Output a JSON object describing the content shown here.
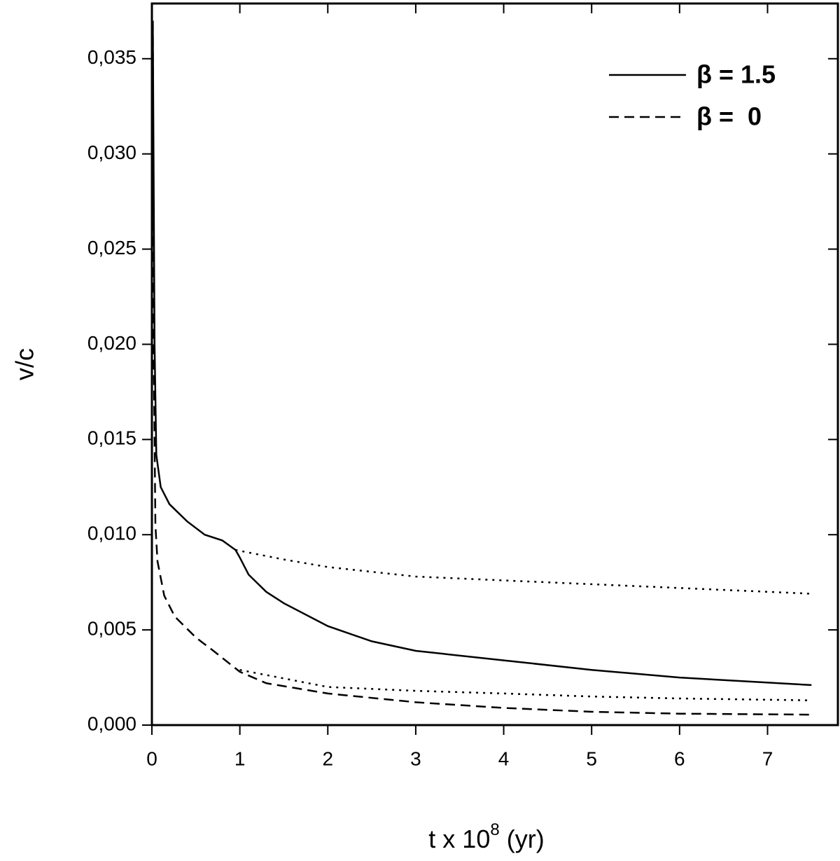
{
  "chart_data": {
    "type": "line",
    "xlabel": {
      "base": "t x 10",
      "exponent": "8",
      "unit": "(yr)"
    },
    "ylabel": "v/c",
    "xlim": [
      0,
      7.8
    ],
    "ylim": [
      0,
      0.0379
    ],
    "xticks": [
      0,
      1,
      2,
      3,
      4,
      5,
      6,
      7
    ],
    "yticks": [
      {
        "value": 0,
        "label": "0,000"
      },
      {
        "value": 0.005,
        "label": "0,005"
      },
      {
        "value": 0.01,
        "label": "0,010"
      },
      {
        "value": 0.015,
        "label": "0,015"
      },
      {
        "value": 0.02,
        "label": "0,020"
      },
      {
        "value": 0.025,
        "label": "0,025"
      },
      {
        "value": 0.03,
        "label": "0,030"
      },
      {
        "value": 0.035,
        "label": "0,035"
      }
    ],
    "legend": "upper right",
    "series": [
      {
        "name": "β = 1.5",
        "color": "#000000",
        "style": "solid",
        "x": [
          0.01,
          0.03,
          0.05,
          0.1,
          0.2,
          0.4,
          0.6,
          0.8,
          0.95,
          1.0,
          1.1,
          1.3,
          1.5,
          2,
          2.5,
          3,
          4,
          5,
          6,
          7.5
        ],
        "values": [
          0.037,
          0.02,
          0.0142,
          0.0125,
          0.0116,
          0.0107,
          0.01,
          0.0097,
          0.0092,
          0.0088,
          0.0079,
          0.007,
          0.0064,
          0.0052,
          0.0044,
          0.0039,
          0.0034,
          0.0029,
          0.0025,
          0.0021
        ]
      },
      {
        "name": "β =  0",
        "color": "#000000",
        "style": "dashed",
        "x": [
          0.01,
          0.02,
          0.04,
          0.064,
          0.14,
          0.26,
          0.5,
          0.7,
          1.0,
          1.3,
          2,
          3,
          4,
          5,
          6,
          7.5
        ],
        "values": [
          0.037,
          0.02,
          0.0105,
          0.0086,
          0.0068,
          0.0057,
          0.0046,
          0.0039,
          0.0028,
          0.0022,
          0.00166,
          0.0012,
          0.0009,
          0.0007,
          0.0006,
          0.00055
        ]
      },
      {
        "color": "#000000",
        "style": "dotted",
        "x": [
          0.95,
          1.5,
          2,
          3,
          4,
          5,
          6,
          7.5
        ],
        "values": [
          0.0092,
          0.0087,
          0.0083,
          0.0078,
          0.0076,
          0.0074,
          0.0072,
          0.0069
        ]
      },
      {
        "color": "#000000",
        "style": "dotted",
        "x": [
          1.0,
          2,
          3,
          4,
          5,
          6,
          7.5
        ],
        "values": [
          0.0029,
          0.002,
          0.0018,
          0.00166,
          0.0015,
          0.0014,
          0.0013
        ]
      }
    ]
  }
}
